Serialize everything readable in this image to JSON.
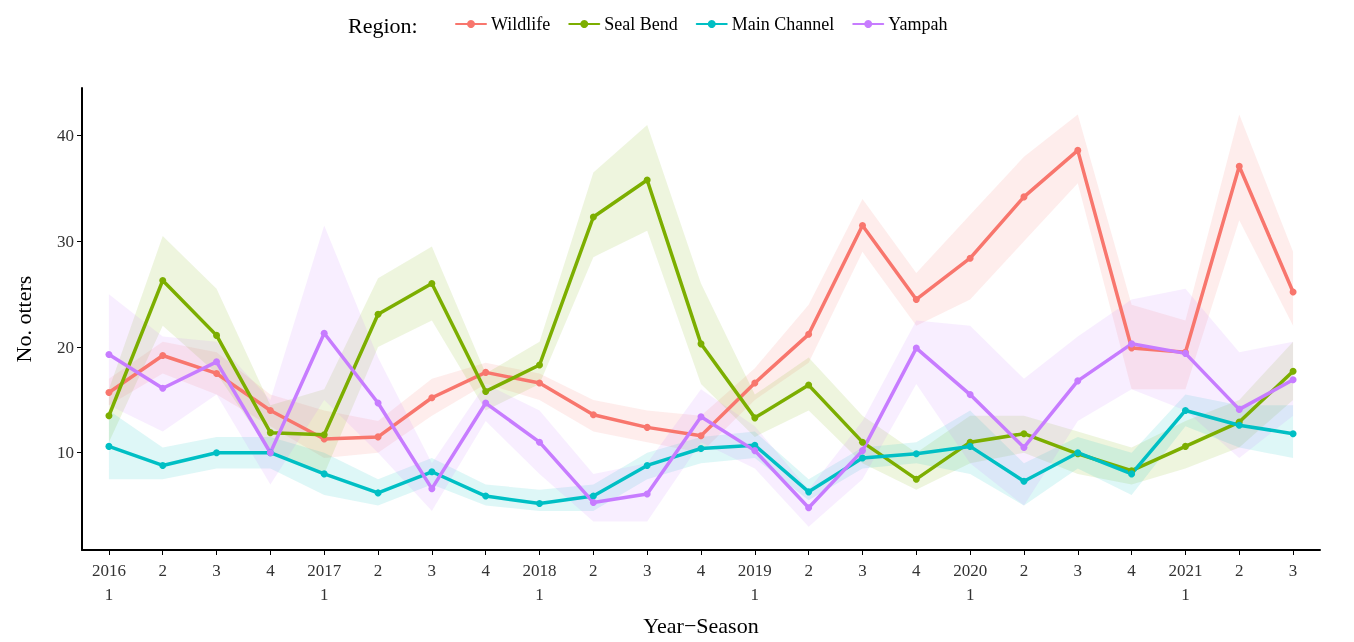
{
  "chart_data": {
    "type": "line",
    "xlabel": "Year−Season",
    "ylabel": "No. otters",
    "legend_title": "Region:",
    "legend": "top",
    "grid": false,
    "marker": "circle",
    "line_style": "solid",
    "categories": [
      "2016\n1",
      "2",
      "3",
      "4",
      "2017\n1",
      "2",
      "3",
      "4",
      "2018\n1",
      "2",
      "3",
      "4",
      "2019\n1",
      "2",
      "3",
      "4",
      "2020\n1",
      "2",
      "3",
      "4",
      "2021\n1",
      "2",
      "3"
    ],
    "ylim": [
      0.8,
      44.5
    ],
    "yticks": [
      10,
      20,
      30,
      40
    ],
    "series": [
      {
        "name": "Wildlife",
        "color": "#f8766d",
        "values": [
          15.7,
          19.2,
          17.5,
          14.0,
          11.3,
          11.5,
          15.2,
          17.6,
          16.6,
          13.6,
          12.4,
          11.6,
          16.6,
          21.2,
          31.5,
          24.5,
          28.4,
          34.2,
          38.6,
          19.9,
          19.5,
          37.1,
          25.2
        ],
        "upper": [
          17,
          20.5,
          19.5,
          15.5,
          14,
          13,
          17,
          18.5,
          17.5,
          15,
          14,
          13.5,
          18,
          24,
          34,
          27,
          32.5,
          38,
          42,
          24,
          22.5,
          42,
          29
        ],
        "lower": [
          14.5,
          17.5,
          15.5,
          12.5,
          9.5,
          10,
          13.5,
          16.5,
          15,
          12,
          11,
          10,
          15,
          18.5,
          29,
          22,
          24.5,
          30,
          35.5,
          16,
          16,
          32,
          22
        ]
      },
      {
        "name": "Seal Bend",
        "color": "#7cae00",
        "values": [
          13.5,
          26.3,
          21.1,
          11.9,
          11.7,
          23.1,
          26.0,
          15.8,
          18.3,
          32.3,
          35.8,
          20.3,
          13.3,
          16.4,
          11.0,
          7.5,
          11.0,
          11.8,
          9.9,
          8.3,
          10.6,
          12.9,
          17.7
        ],
        "upper": [
          16,
          30.5,
          25.5,
          14.5,
          16,
          26.5,
          29.5,
          17.5,
          20.5,
          36.5,
          41,
          26,
          15.5,
          19,
          13.5,
          10,
          13.5,
          13.5,
          12,
          10.5,
          13,
          15,
          20.5
        ],
        "lower": [
          11,
          22,
          17.5,
          10,
          8,
          20,
          22.5,
          14,
          16.5,
          28.5,
          31,
          16.5,
          11.5,
          14,
          9,
          6.5,
          9,
          10,
          8,
          7,
          8.5,
          10.5,
          15
        ]
      },
      {
        "name": "Main Channel",
        "color": "#00bfc4",
        "values": [
          10.6,
          8.8,
          10.0,
          10.0,
          8.0,
          6.2,
          8.2,
          5.9,
          5.2,
          5.9,
          8.8,
          10.4,
          10.7,
          6.3,
          9.5,
          9.9,
          10.6,
          7.3,
          10.0,
          8.0,
          14.0,
          12.6,
          11.8
        ],
        "upper": [
          14,
          10.5,
          11.5,
          11.5,
          10,
          7.5,
          9.5,
          7,
          6.5,
          7,
          10,
          11.5,
          12,
          7.5,
          10.5,
          11,
          14,
          9,
          11.5,
          10,
          15.5,
          14.5,
          14.5
        ],
        "lower": [
          7.5,
          7.5,
          8.5,
          8.5,
          6,
          5,
          7,
          5,
          4.5,
          4.5,
          7.5,
          9,
          9.5,
          5.5,
          8.5,
          9,
          8,
          5,
          8.5,
          6,
          12.5,
          10.5,
          9.5
        ]
      },
      {
        "name": "Yampah",
        "color": "#c77cff",
        "values": [
          19.3,
          16.1,
          18.6,
          10.0,
          21.3,
          14.7,
          6.6,
          14.7,
          11.0,
          5.3,
          6.1,
          13.4,
          10.2,
          4.8,
          10.2,
          19.9,
          15.5,
          10.5,
          16.8,
          20.3,
          19.4,
          14.1,
          16.9
        ],
        "upper": [
          25,
          21,
          20.5,
          15,
          31.5,
          19,
          9,
          16.5,
          14,
          8,
          9,
          16,
          12.5,
          6.5,
          13,
          22.5,
          22,
          17,
          21,
          24.5,
          25.5,
          19.5,
          20.5
        ],
        "lower": [
          14.5,
          12,
          15.5,
          7,
          15,
          10,
          4.5,
          13,
          8,
          3.5,
          3.5,
          11,
          8.5,
          3,
          7.5,
          16.5,
          9,
          5,
          13,
          16,
          14,
          9.5,
          13.5
        ]
      }
    ]
  }
}
